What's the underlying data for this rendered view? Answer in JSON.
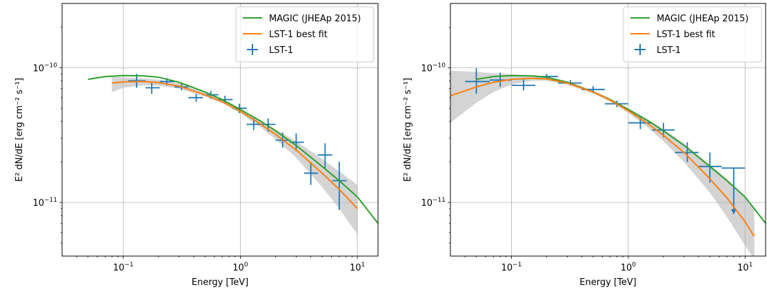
{
  "chart_data": [
    {
      "type": "line",
      "xscale": "log",
      "yscale": "log",
      "xlim": [
        0.03,
        15
      ],
      "ylim": [
        4e-12,
        3e-10
      ],
      "xlabel": "Energy [TeV]",
      "ylabel": "E² dN/dE [erg cm⁻² s⁻¹]",
      "xticks": [
        {
          "value": 0.1,
          "base": "10",
          "exp": "−1"
        },
        {
          "value": 1,
          "base": "10",
          "exp": "0"
        },
        {
          "value": 10,
          "base": "10",
          "exp": "1"
        }
      ],
      "yticks": [
        {
          "value": 1e-11,
          "base": "10",
          "exp": "−11"
        },
        {
          "value": 1e-10,
          "base": "10",
          "exp": "−10"
        }
      ],
      "grid": true,
      "legend": "top-right",
      "series": [
        {
          "name": "MAGIC (JHEAp 2015)",
          "kind": "curve",
          "color": "#2ca02c",
          "x": [
            0.05,
            0.07,
            0.1,
            0.15,
            0.2,
            0.3,
            0.5,
            0.7,
            1,
            1.5,
            2,
            3,
            5,
            7,
            10,
            15
          ],
          "y": [
            8.2e-11,
            8.6e-11,
            8.75e-11,
            8.7e-11,
            8.5e-11,
            7.8e-11,
            6.6e-11,
            5.8e-11,
            4.9e-11,
            4e-11,
            3.4e-11,
            2.65e-11,
            1.85e-11,
            1.45e-11,
            1.1e-11,
            7e-12
          ]
        },
        {
          "name": "LST-1 best fit",
          "kind": "curve",
          "color": "#ff7f0e",
          "x": [
            0.08,
            0.1,
            0.15,
            0.2,
            0.3,
            0.5,
            0.7,
            1,
            1.5,
            2,
            3,
            5,
            7,
            10
          ],
          "y": [
            7.7e-11,
            7.85e-11,
            7.9e-11,
            7.75e-11,
            7.3e-11,
            6.3e-11,
            5.6e-11,
            4.75e-11,
            3.8e-11,
            3.2e-11,
            2.45e-11,
            1.65e-11,
            1.25e-11,
            9e-12
          ]
        },
        {
          "name": "LST-1 band",
          "kind": "band",
          "color": "#b0b0b0",
          "x": [
            0.08,
            0.1,
            0.15,
            0.2,
            0.3,
            0.5,
            0.7,
            1,
            1.5,
            2,
            3,
            5,
            7,
            10
          ],
          "ylow": [
            6.6e-11,
            7.1e-11,
            7.4e-11,
            7.35e-11,
            7e-11,
            6.1e-11,
            5.45e-11,
            4.6e-11,
            3.6e-11,
            2.95e-11,
            2.15e-11,
            1.3e-11,
            9e-12,
            5.8e-12
          ],
          "yhigh": [
            8.6e-11,
            8.5e-11,
            8.35e-11,
            8.15e-11,
            7.65e-11,
            6.5e-11,
            5.8e-11,
            4.95e-11,
            4.05e-11,
            3.5e-11,
            2.85e-11,
            2.1e-11,
            1.7e-11,
            1.35e-11
          ]
        },
        {
          "name": "LST-1",
          "kind": "errorbar",
          "color": "#1f77b4",
          "points": [
            {
              "x": 0.13,
              "xlo": 0.11,
              "xhi": 0.155,
              "y": 8e-11,
              "ylo": 7.1e-11,
              "yhi": 9e-11
            },
            {
              "x": 0.175,
              "xlo": 0.155,
              "xhi": 0.205,
              "y": 7.1e-11,
              "ylo": 6.4e-11,
              "yhi": 7.8e-11
            },
            {
              "x": 0.235,
              "xlo": 0.205,
              "xhi": 0.275,
              "y": 7.9e-11,
              "ylo": 7.4e-11,
              "yhi": 8.4e-11
            },
            {
              "x": 0.315,
              "xlo": 0.275,
              "xhi": 0.36,
              "y": 7.2e-11,
              "ylo": 6.8e-11,
              "yhi": 7.6e-11
            },
            {
              "x": 0.42,
              "xlo": 0.36,
              "xhi": 0.48,
              "y": 6e-11,
              "ylo": 5.6e-11,
              "yhi": 6.4e-11
            },
            {
              "x": 0.56,
              "xlo": 0.48,
              "xhi": 0.65,
              "y": 6.3e-11,
              "ylo": 5.9e-11,
              "yhi": 6.7e-11
            },
            {
              "x": 0.74,
              "xlo": 0.65,
              "xhi": 0.86,
              "y": 5.8e-11,
              "ylo": 5.4e-11,
              "yhi": 6.2e-11
            },
            {
              "x": 0.98,
              "xlo": 0.86,
              "xhi": 1.13,
              "y": 5e-11,
              "ylo": 4.6e-11,
              "yhi": 5.4e-11
            },
            {
              "x": 1.3,
              "xlo": 1.13,
              "xhi": 1.5,
              "y": 3.8e-11,
              "ylo": 3.45e-11,
              "yhi": 4.2e-11
            },
            {
              "x": 1.73,
              "xlo": 1.5,
              "xhi": 2.0,
              "y": 3.8e-11,
              "ylo": 3.35e-11,
              "yhi": 4.2e-11
            },
            {
              "x": 2.3,
              "xlo": 2.0,
              "xhi": 2.65,
              "y": 2.9e-11,
              "ylo": 2.55e-11,
              "yhi": 3.3e-11
            },
            {
              "x": 3.0,
              "xlo": 2.65,
              "xhi": 3.5,
              "y": 2.8e-11,
              "ylo": 2.4e-11,
              "yhi": 3.25e-11
            },
            {
              "x": 4.0,
              "xlo": 3.5,
              "xhi": 4.6,
              "y": 1.65e-11,
              "ylo": 1.35e-11,
              "yhi": 2e-11
            },
            {
              "x": 5.3,
              "xlo": 4.6,
              "xhi": 6.1,
              "y": 2.25e-11,
              "ylo": 1.8e-11,
              "yhi": 2.75e-11
            },
            {
              "x": 7.0,
              "xlo": 6.1,
              "xhi": 8.1,
              "y": 1.45e-11,
              "ylo": 8.8e-12,
              "yhi": 2e-11
            }
          ]
        }
      ]
    },
    {
      "type": "line",
      "xscale": "log",
      "yscale": "log",
      "xlim": [
        0.03,
        15
      ],
      "ylim": [
        4e-12,
        3e-10
      ],
      "xlabel": "Energy [TeV]",
      "ylabel": "E² dN/dE [erg cm⁻² s⁻¹]",
      "xticks": [
        {
          "value": 0.1,
          "base": "10",
          "exp": "−1"
        },
        {
          "value": 1,
          "base": "10",
          "exp": "0"
        },
        {
          "value": 10,
          "base": "10",
          "exp": "1"
        }
      ],
      "yticks": [
        {
          "value": 1e-11,
          "base": "10",
          "exp": "−11"
        },
        {
          "value": 1e-10,
          "base": "10",
          "exp": "−10"
        }
      ],
      "grid": true,
      "legend": "top-right",
      "series": [
        {
          "name": "MAGIC (JHEAp 2015)",
          "kind": "curve",
          "color": "#2ca02c",
          "x": [
            0.05,
            0.07,
            0.1,
            0.15,
            0.2,
            0.3,
            0.5,
            0.7,
            1,
            1.5,
            2,
            3,
            5,
            7,
            10,
            15
          ],
          "y": [
            8.2e-11,
            8.6e-11,
            8.75e-11,
            8.7e-11,
            8.5e-11,
            7.8e-11,
            6.6e-11,
            5.8e-11,
            4.9e-11,
            4e-11,
            3.4e-11,
            2.65e-11,
            1.85e-11,
            1.45e-11,
            1.1e-11,
            7e-12
          ]
        },
        {
          "name": "LST-1 best fit",
          "kind": "curve",
          "color": "#ff7f0e",
          "x": [
            0.03,
            0.05,
            0.07,
            0.1,
            0.15,
            0.2,
            0.3,
            0.5,
            0.7,
            1,
            1.5,
            2,
            3,
            5,
            7,
            10,
            12
          ],
          "y": [
            6.2e-11,
            7.2e-11,
            7.8e-11,
            8.2e-11,
            8.35e-11,
            8.25e-11,
            7.7e-11,
            6.6e-11,
            5.75e-11,
            4.8e-11,
            3.8e-11,
            3.15e-11,
            2.35e-11,
            1.5e-11,
            1.08e-11,
            7.2e-12,
            5.6e-12
          ]
        },
        {
          "name": "LST-1 band",
          "kind": "band",
          "color": "#b0b0b0",
          "x": [
            0.03,
            0.05,
            0.07,
            0.1,
            0.15,
            0.2,
            0.3,
            0.5,
            0.7,
            1,
            1.5,
            2,
            3,
            5,
            7,
            10,
            12
          ],
          "ylow": [
            3.9e-11,
            5.5e-11,
            6.6e-11,
            7.5e-11,
            8e-11,
            8e-11,
            7.5e-11,
            6.45e-11,
            5.6e-11,
            4.62e-11,
            3.55e-11,
            2.85e-11,
            2e-11,
            1.18e-11,
            7.8e-12,
            4.8e-12,
            3.8e-12
          ],
          "yhigh": [
            9.5e-11,
            9.3e-11,
            9.1e-11,
            8.95e-11,
            8.75e-11,
            8.55e-11,
            7.95e-11,
            6.8e-11,
            5.9e-11,
            5e-11,
            4.1e-11,
            3.5e-11,
            2.75e-11,
            1.9e-11,
            1.5e-11,
            1.1e-11,
            9e-12
          ]
        },
        {
          "name": "LST-1",
          "kind": "errorbar",
          "color": "#1f77b4",
          "points": [
            {
              "x": 0.05,
              "xlo": 0.04,
              "xhi": 0.065,
              "y": 7.9e-11,
              "ylo": 6.4e-11,
              "yhi": 9.9e-11
            },
            {
              "x": 0.08,
              "xlo": 0.065,
              "xhi": 0.1,
              "y": 8.1e-11,
              "ylo": 7.2e-11,
              "yhi": 9.2e-11
            },
            {
              "x": 0.127,
              "xlo": 0.1,
              "xhi": 0.16,
              "y": 7.4e-11,
              "ylo": 6.8e-11,
              "yhi": 8.2e-11
            },
            {
              "x": 0.2,
              "xlo": 0.16,
              "xhi": 0.25,
              "y": 8.6e-11,
              "ylo": 8.2e-11,
              "yhi": 9e-11
            },
            {
              "x": 0.32,
              "xlo": 0.25,
              "xhi": 0.4,
              "y": 7.7e-11,
              "ylo": 7.4e-11,
              "yhi": 8.1e-11
            },
            {
              "x": 0.5,
              "xlo": 0.4,
              "xhi": 0.63,
              "y": 6.9e-11,
              "ylo": 6.6e-11,
              "yhi": 7.3e-11
            },
            {
              "x": 0.8,
              "xlo": 0.63,
              "xhi": 1.0,
              "y": 5.4e-11,
              "ylo": 5.1e-11,
              "yhi": 5.7e-11
            },
            {
              "x": 1.27,
              "xlo": 1.0,
              "xhi": 1.6,
              "y": 3.9e-11,
              "ylo": 3.5e-11,
              "yhi": 4.4e-11
            },
            {
              "x": 2.0,
              "xlo": 1.6,
              "xhi": 2.5,
              "y": 3.45e-11,
              "ylo": 3.05e-11,
              "yhi": 3.9e-11
            },
            {
              "x": 3.2,
              "xlo": 2.5,
              "xhi": 4.0,
              "y": 2.35e-11,
              "ylo": 2e-11,
              "yhi": 2.8e-11
            },
            {
              "x": 5.0,
              "xlo": 4.0,
              "xhi": 6.3,
              "y": 1.85e-11,
              "ylo": 1.4e-11,
              "yhi": 2.35e-11
            },
            {
              "x": 8.0,
              "xlo": 6.3,
              "xhi": 10.0,
              "y": 1.8e-11,
              "ylo": 8.2e-12,
              "yhi": 1.8e-11,
              "upper_limit": true
            }
          ]
        }
      ]
    }
  ]
}
